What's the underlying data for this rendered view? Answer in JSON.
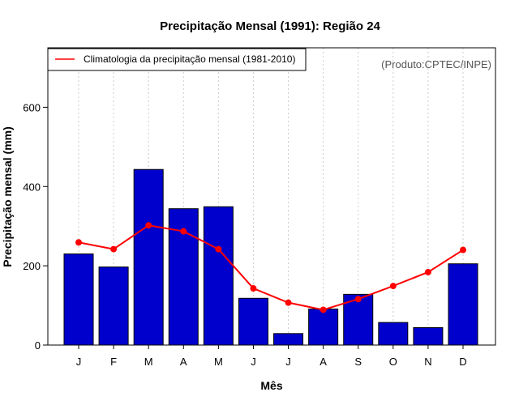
{
  "chart_data": {
    "type": "bar",
    "title": "Precipitação Mensal (1991): Região 24",
    "xlabel": "Mês",
    "ylabel": "Precipitação mensal (mm)",
    "ylim": [
      0,
      750
    ],
    "yticks": [
      0,
      200,
      400,
      600
    ],
    "categories": [
      "J",
      "F",
      "M",
      "A",
      "M",
      "J",
      "J",
      "A",
      "S",
      "O",
      "N",
      "D"
    ],
    "series": [
      {
        "name": "Precipitação mensal (1991)",
        "type": "bar",
        "color": "#0000cd",
        "values": [
          230,
          197,
          443,
          344,
          349,
          118,
          29,
          91,
          128,
          57,
          44,
          205
        ]
      },
      {
        "name": "Climatologia da precipitação mensal (1981-2010)",
        "type": "line",
        "color": "#ff0000",
        "values": [
          259,
          242,
          302,
          287,
          242,
          143,
          107,
          89,
          116,
          149,
          184,
          240
        ]
      }
    ],
    "legend": {
      "label": "Climatologia da precipitação mensal (1981-2010)",
      "position": "top-left"
    },
    "annotation": "(Produto:CPTEC/INPE)",
    "grid": "vertical dotted"
  }
}
